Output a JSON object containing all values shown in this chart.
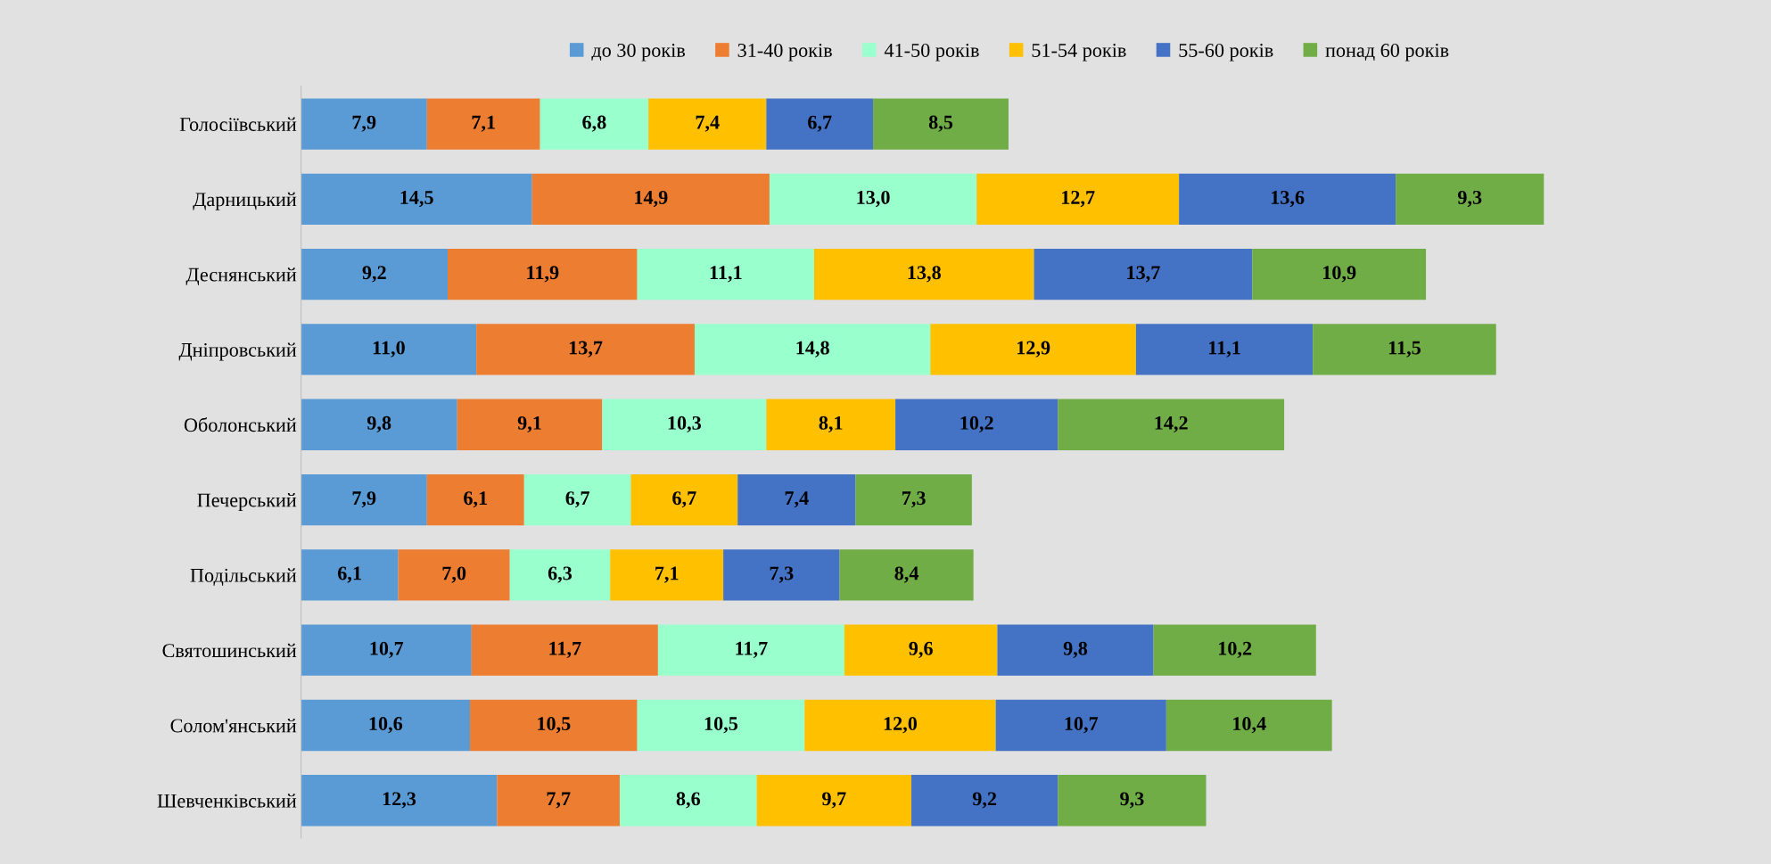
{
  "chart_data": {
    "type": "bar",
    "orientation": "horizontal",
    "stacked": true,
    "legend": "top",
    "grid": false,
    "tick_labels": "y",
    "categories": [
      "Голосіївський",
      "Дарницький",
      "Деснянський",
      "Дніпровський",
      "Оболонський",
      "Печерський",
      "Подільський",
      "Святошинський",
      "Солом'янський",
      "Шевченківський"
    ],
    "series": [
      {
        "name": "до 30 років",
        "color": "#5b9bd5",
        "values": [
          7.9,
          14.5,
          9.2,
          11.0,
          9.8,
          7.9,
          6.1,
          10.7,
          10.6,
          12.3
        ],
        "value_labels": [
          "7,9",
          "14,5",
          "9,2",
          "11,0",
          "9,8",
          "7,9",
          "6,1",
          "10,7",
          "10,6",
          "12,3"
        ]
      },
      {
        "name": "31-40 років",
        "color": "#ed7d31",
        "values": [
          7.1,
          14.9,
          11.9,
          13.7,
          9.1,
          6.1,
          7.0,
          11.7,
          10.5,
          7.7
        ],
        "value_labels": [
          "7,1",
          "14,9",
          "11,9",
          "13,7",
          "9,1",
          "6,1",
          "7,0",
          "11,7",
          "10,5",
          "7,7"
        ]
      },
      {
        "name": "41-50 років",
        "color": "#99ffcc",
        "values": [
          6.8,
          13.0,
          11.1,
          14.8,
          10.3,
          6.7,
          6.3,
          11.7,
          10.5,
          8.6
        ],
        "value_labels": [
          "6,8",
          "13,0",
          "11,1",
          "14,8",
          "10,3",
          "6,7",
          "6,3",
          "11,7",
          "10,5",
          "8,6"
        ]
      },
      {
        "name": "51-54 років",
        "color": "#ffc000",
        "values": [
          7.4,
          12.7,
          13.8,
          12.9,
          8.1,
          6.7,
          7.1,
          9.6,
          12.0,
          9.7
        ],
        "value_labels": [
          "7,4",
          "12,7",
          "13,8",
          "12,9",
          "8,1",
          "6,7",
          "7,1",
          "9,6",
          "12,0",
          "9,7"
        ]
      },
      {
        "name": "55-60 років",
        "color": "#4472c4",
        "values": [
          6.7,
          13.6,
          13.7,
          11.1,
          10.2,
          7.4,
          7.3,
          9.8,
          10.7,
          9.2
        ],
        "value_labels": [
          "6,7",
          "13,6",
          "13,7",
          "11,1",
          "10,2",
          "7,4",
          "7,3",
          "9,8",
          "10,7",
          "9,2"
        ]
      },
      {
        "name": "понад 60 років",
        "color": "#70ad47",
        "values": [
          8.5,
          9.3,
          10.9,
          11.5,
          14.2,
          7.3,
          8.4,
          10.2,
          10.4,
          9.3
        ],
        "value_labels": [
          "8,5",
          "9,3",
          "10,9",
          "11,5",
          "14,2",
          "7,3",
          "8,4",
          "10,2",
          "10,4",
          "9,3"
        ]
      }
    ]
  }
}
